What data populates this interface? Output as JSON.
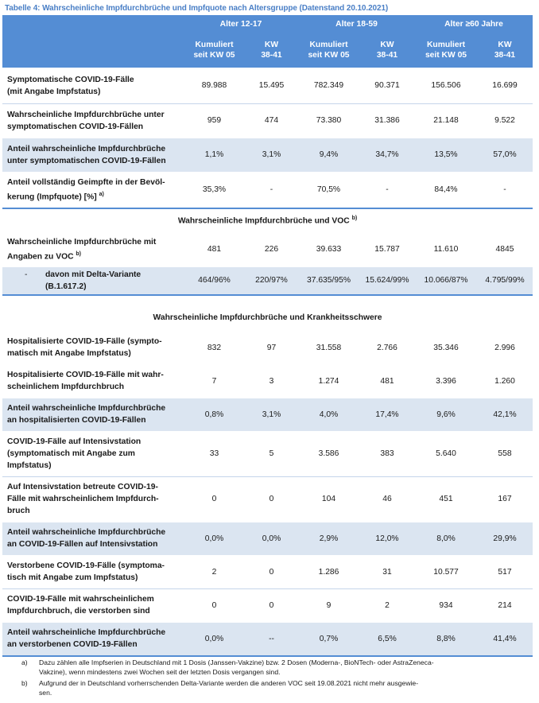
{
  "caption": "Tabelle 4: Wahrscheinliche Impfdurchbrüche und Impfquote nach Altersgruppe (Datenstand 20.10.2021)",
  "groups": [
    "Alter 12-17",
    "Alter 18-59",
    "Alter ≥60 Jahre"
  ],
  "subheaders": {
    "cum_line1": "Kumuliert",
    "cum_line2": "seit KW 05",
    "kw_line1": "KW",
    "kw_line2": "38-41"
  },
  "rows1": [
    {
      "l1": "Symptomatische COVID-19-Fälle",
      "l2": "(mit Angabe Impfstatus)",
      "v": [
        "89.988",
        "15.495",
        "782.349",
        "90.371",
        "156.506",
        "16.699"
      ]
    },
    {
      "l1": "Wahrscheinliche Impfdurchbrüche unter",
      "l2": "symptomatischen COVID-19-Fällen",
      "v": [
        "959",
        "474",
        "73.380",
        "31.386",
        "21.148",
        "9.522"
      ]
    },
    {
      "l1": "Anteil wahrscheinliche Impfdurchbrüche",
      "l2": "unter symptomatischen COVID-19-Fällen",
      "v": [
        "1,1%",
        "3,1%",
        "9,4%",
        "34,7%",
        "13,5%",
        "57,0%"
      ]
    },
    {
      "l1": "Anteil vollständig Geimpfte in der Bevöl-",
      "l2": "kerung (Impfquote) [%]",
      "sup": "a)",
      "v": [
        "35,3%",
        "-",
        "70,5%",
        "-",
        "84,4%",
        "-"
      ]
    }
  ],
  "section_voc": {
    "title": "Wahrscheinliche Impfdurchbrüche und VOC",
    "sup": "b)"
  },
  "rows_voc": [
    {
      "l1": "Wahrscheinliche Impfdurchbrüche mit",
      "l2": "Angaben zu VOC",
      "sup": "b)",
      "v": [
        "481",
        "226",
        "39.633",
        "15.787",
        "11.610",
        "4845"
      ]
    }
  ],
  "delta": {
    "dash": "-",
    "l1": "davon mit Delta-Variante",
    "l2": "(B.1.617.2)",
    "v": [
      "464/96%",
      "220/97%",
      "37.635/95%",
      "15.624/99%",
      "10.066/87%",
      "4.795/99%"
    ]
  },
  "section_severity": {
    "title": "Wahrscheinliche Impfdurchbrüche und Krankheitsschwere"
  },
  "rows_sev": [
    {
      "lines": [
        "Hospitalisierte COVID-19-Fälle (sympto-",
        "matisch mit Angabe Impfstatus)"
      ],
      "v": [
        "832",
        "97",
        "31.558",
        "2.766",
        "35.346",
        "2.996"
      ]
    },
    {
      "lines": [
        "Hospitalisierte COVID-19-Fälle mit wahr-",
        "scheinlichem Impfdurchbruch"
      ],
      "v": [
        "7",
        "3",
        "1.274",
        "481",
        "3.396",
        "1.260"
      ]
    },
    {
      "lines": [
        "Anteil wahrscheinliche Impfdurchbrüche",
        "an hospitalisierten COVID-19-Fällen"
      ],
      "v": [
        "0,8%",
        "3,1%",
        "4,0%",
        "17,4%",
        "9,6%",
        "42,1%"
      ]
    },
    {
      "lines": [
        "COVID-19-Fälle auf Intensivstation",
        "(symptomatisch mit Angabe zum",
        "Impfstatus)"
      ],
      "v": [
        "33",
        "5",
        "3.586",
        "383",
        "5.640",
        "558"
      ]
    },
    {
      "lines": [
        "Auf Intensivstation betreute COVID-19-",
        "Fälle mit wahrscheinlichem Impfdurch-",
        "bruch"
      ],
      "v": [
        "0",
        "0",
        "104",
        "46",
        "451",
        "167"
      ]
    },
    {
      "lines": [
        "Anteil wahrscheinliche Impfdurchbrüche",
        "an COVID-19-Fällen auf Intensivstation"
      ],
      "v": [
        "0,0%",
        "0,0%",
        "2,9%",
        "12,0%",
        "8,0%",
        "29,9%"
      ]
    },
    {
      "lines": [
        "Verstorbene COVID-19-Fälle (symptoma-",
        "tisch mit Angabe zum Impfstatus)"
      ],
      "v": [
        "2",
        "0",
        "1.286",
        "31",
        "10.577",
        "517"
      ]
    },
    {
      "lines": [
        "COVID-19-Fälle mit wahrscheinlichem",
        "Impfdurchbruch, die verstorben sind"
      ],
      "v": [
        "0",
        "0",
        "9",
        "2",
        "934",
        "214"
      ]
    },
    {
      "lines": [
        "Anteil wahrscheinliche Impfdurchbrüche",
        "an verstorbenen COVID-19-Fällen"
      ],
      "v": [
        "0,0%",
        "--",
        "0,7%",
        "6,5%",
        "8,8%",
        "41,4%"
      ]
    }
  ],
  "footnotes": [
    {
      "mark": "a)",
      "l1": "Dazu zählen alle Impfserien in Deutschland mit 1 Dosis (Janssen-Vakzine) bzw. 2 Dosen (Moderna-, BioNTech- oder AstraZeneca-",
      "l2": "Vakzine), wenn mindestens zwei Wochen seit der letzten Dosis vergangen sind."
    },
    {
      "mark": "b)",
      "l1": "Aufgrund der in Deutschland vorherrschenden Delta-Variante werden die anderen VOC seit 19.08.2021 nicht mehr ausgewie-",
      "l2": "sen."
    }
  ]
}
